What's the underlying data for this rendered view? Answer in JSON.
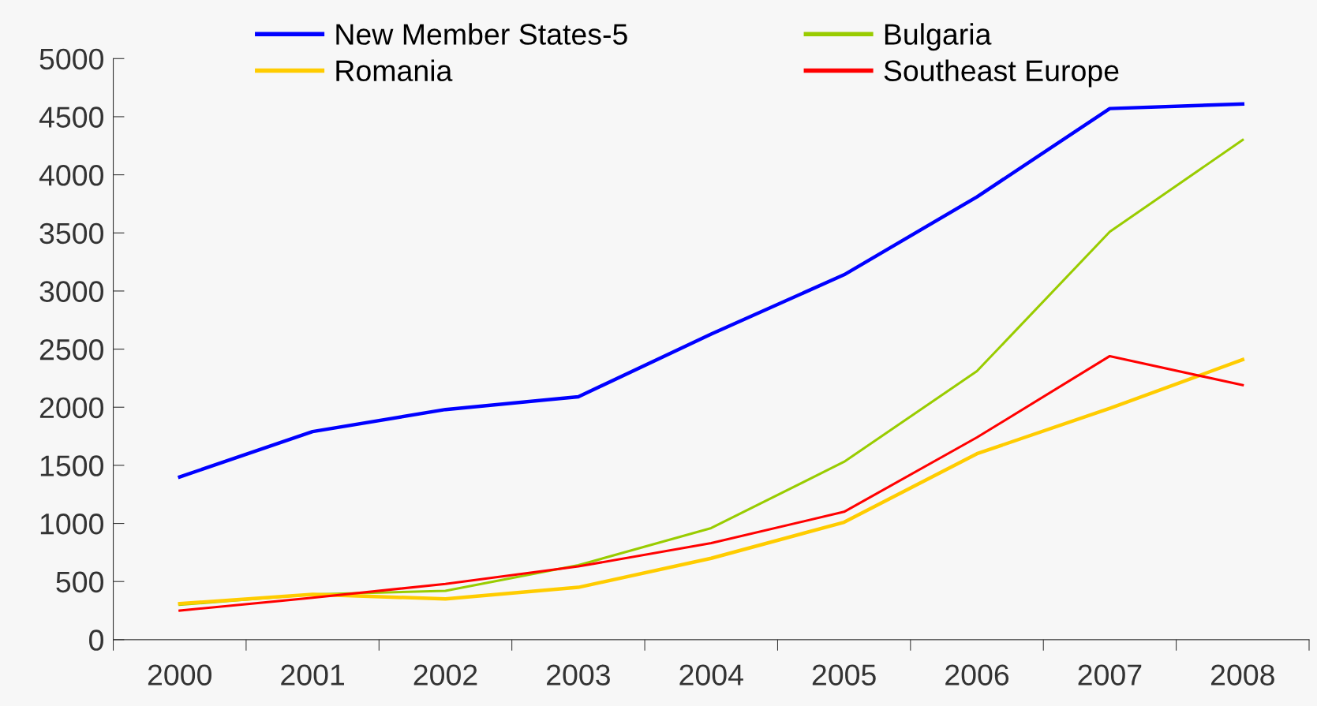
{
  "chart_data": {
    "type": "line",
    "categories": [
      "2000",
      "2001",
      "2002",
      "2003",
      "2004",
      "2005",
      "2006",
      "2007",
      "2008"
    ],
    "series": [
      {
        "name": "New Member States-5",
        "color": "#0000ff",
        "values": [
          1400,
          1790,
          1980,
          2090,
          2630,
          3140,
          3810,
          4570,
          4610
        ]
      },
      {
        "name": "Bulgaria",
        "color": "#99cc00",
        "values": [
          300,
          390,
          420,
          640,
          960,
          1530,
          2310,
          3510,
          4300
        ]
      },
      {
        "name": "Romania",
        "color": "#ffcc00",
        "values": [
          310,
          390,
          350,
          450,
          700,
          1010,
          1600,
          1990,
          2410
        ]
      },
      {
        "name": "Southeast Europe",
        "color": "#ff0000",
        "values": [
          250,
          360,
          480,
          630,
          830,
          1100,
          1740,
          2440,
          2190
        ]
      }
    ],
    "ylim": [
      0,
      5000
    ],
    "yticks": [
      0,
      500,
      1000,
      1500,
      2000,
      2500,
      3000,
      3500,
      4000,
      4500,
      5000
    ],
    "grid": false,
    "legend": "top",
    "marker": "none",
    "line_style": "solid"
  }
}
